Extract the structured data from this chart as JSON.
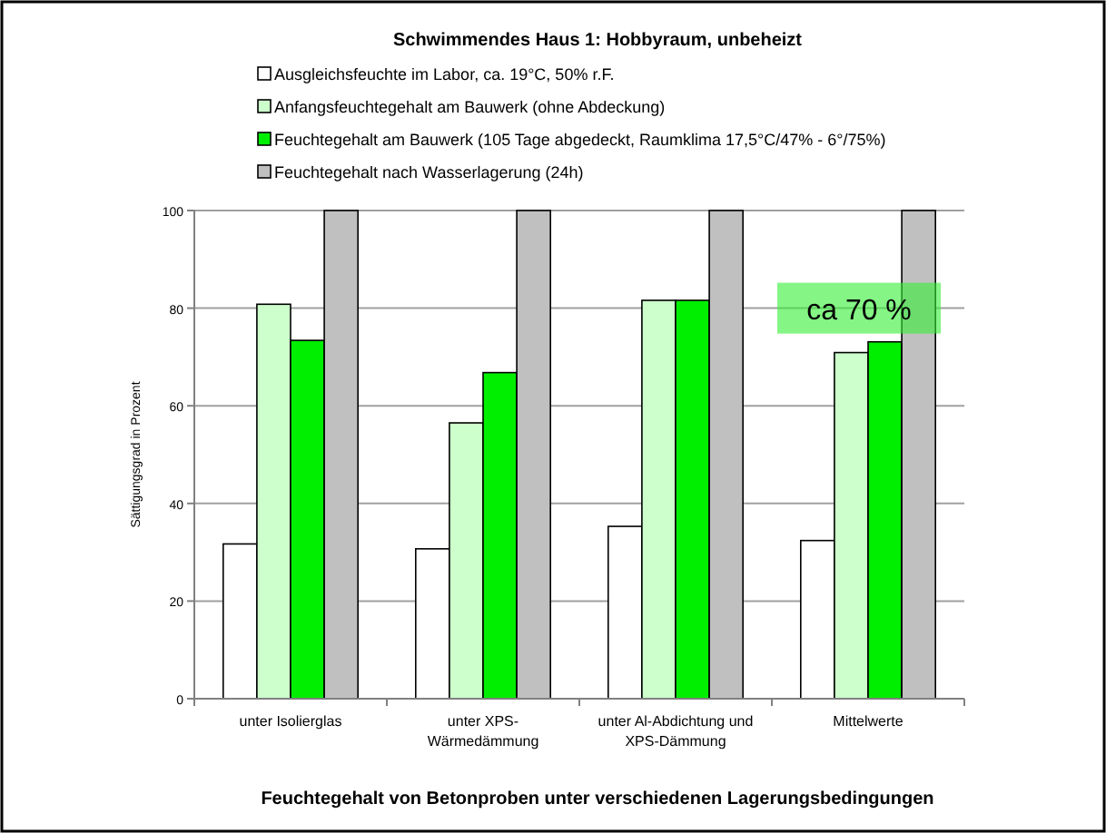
{
  "chart_data": {
    "type": "bar",
    "title": "Schwimmendes Haus 1: Hobbyraum, unbeheizt",
    "xlabel": "Feuchtegehalt von Betonproben unter verschiedenen Lagerungsbedingungen",
    "ylabel": "Sättigungsgrad in Prozent",
    "categories": [
      "unter Isolierglas",
      "unter XPS-\nWärmedämmung",
      "unter Al-Abdichtung und\nXPS-Dämmung",
      "Mittelwerte"
    ],
    "series": [
      {
        "name": "Ausgleichsfeuchte im Labor, ca. 19°C, 50% r.F.",
        "color": "#ffffff",
        "values": [
          31.7,
          30.7,
          35.3,
          32.4
        ]
      },
      {
        "name": "Anfangsfeuchtegehalt am Bauwerk (ohne Abdeckung)",
        "color": "#ccffcc",
        "values": [
          80.8,
          56.5,
          81.6,
          70.9
        ]
      },
      {
        "name": "Feuchtegehalt am Bauwerk (105 Tage abgedeckt, Raumklima 17,5°C/47% - 6°/75%)",
        "color": "#00ee00",
        "values": [
          73.4,
          66.8,
          81.6,
          73.1
        ]
      },
      {
        "name": "Feuchtegehalt nach Wasserlagerung (24h)",
        "color": "#c0c0c0",
        "values": [
          100,
          100,
          100,
          100
        ]
      }
    ],
    "ylim": [
      0,
      100
    ],
    "yticks": [
      0,
      20,
      40,
      60,
      80,
      100
    ],
    "grid": "y",
    "legend": "top",
    "annotations": [
      "ca 70 %"
    ]
  }
}
